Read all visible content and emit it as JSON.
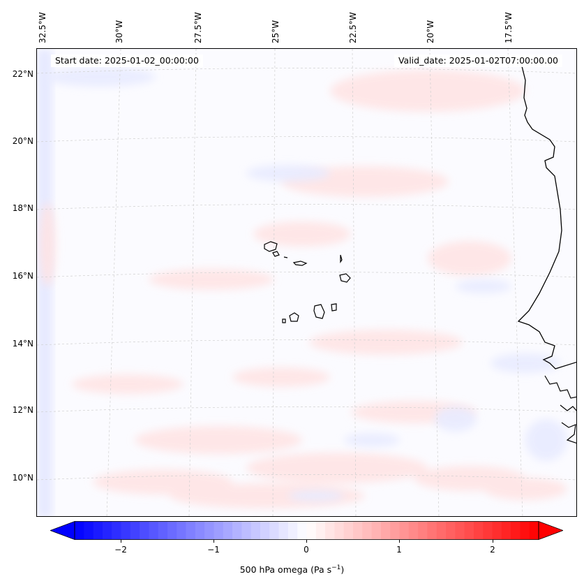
{
  "map": {
    "start_date": "Start date: 2025-01-02_00:00:00",
    "valid_date": "Valid_date: 2025-01-02T07:00:00.00",
    "lon_labels": [
      "32.5°W",
      "30°W",
      "27.5°W",
      "25°W",
      "22.5°W",
      "20°W",
      "17.5°W"
    ],
    "lat_labels": [
      "22°N",
      "20°N",
      "18°N",
      "16°N",
      "14°N",
      "12°N",
      "10°N"
    ],
    "land_color": "#000000",
    "grid_color": "#c8c8c8"
  },
  "colorbar": {
    "label_main": "500 hPa omega (Pa s",
    "label_sup": "−1",
    "label_end": ")",
    "ticks": [
      "−2",
      "−1",
      "0",
      "1",
      "2"
    ],
    "tick_values": [
      -2,
      -1,
      0,
      1,
      2
    ],
    "vmin": -2.5,
    "vmax": 2.5,
    "min_color": "#0000ff",
    "mid_color": "#ffffff",
    "max_color": "#ff0000"
  }
}
